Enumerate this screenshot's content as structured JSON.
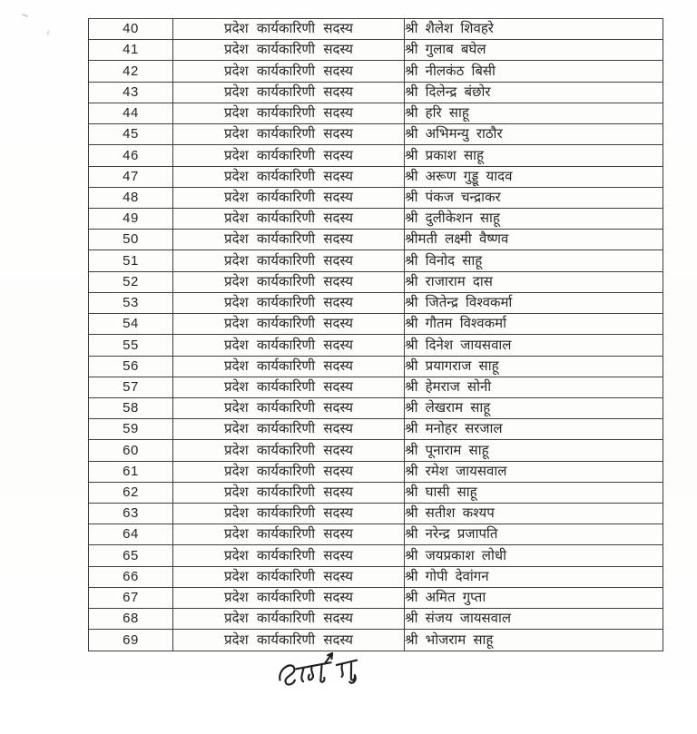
{
  "colors": {
    "ink": "#262626",
    "table_border": "#3e3e3e",
    "signature_ink": "#1f1f1f",
    "page_background": "#ffffff"
  },
  "table": {
    "columns": [
      "serial",
      "position",
      "name"
    ],
    "position_label": "प्रदेश कार्यकारिणी सदस्य",
    "rows": [
      {
        "serial": "40",
        "position": "प्रदेश कार्यकारिणी सदस्य",
        "name": "श्री शैलेश शिवहरे"
      },
      {
        "serial": "41",
        "position": "प्रदेश कार्यकारिणी सदस्य",
        "name": "श्री गुलाब बघेल"
      },
      {
        "serial": "42",
        "position": "प्रदेश कार्यकारिणी सदस्य",
        "name": "श्री नीलकंठ बिसी"
      },
      {
        "serial": "43",
        "position": "प्रदेश कार्यकारिणी सदस्य",
        "name": "श्री दिलेन्द्र बंछोर"
      },
      {
        "serial": "44",
        "position": "प्रदेश कार्यकारिणी सदस्य",
        "name": "श्री हरि साहू"
      },
      {
        "serial": "45",
        "position": "प्रदेश कार्यकारिणी सदस्य",
        "name": "श्री अभिमन्यु राठौर"
      },
      {
        "serial": "46",
        "position": "प्रदेश कार्यकारिणी सदस्य",
        "name": "श्री प्रकाश साहू"
      },
      {
        "serial": "47",
        "position": "प्रदेश कार्यकारिणी सदस्य",
        "name": "श्री अरूण गुड्डू यादव"
      },
      {
        "serial": "48",
        "position": "प्रदेश कार्यकारिणी सदस्य",
        "name": "श्री पंकज चन्द्राकर"
      },
      {
        "serial": "49",
        "position": "प्रदेश कार्यकारिणी सदस्य",
        "name": "श्री दुलीकेशन साहू"
      },
      {
        "serial": "50",
        "position": "प्रदेश कार्यकारिणी सदस्य",
        "name": "श्रीमती लक्ष्मी वैष्णव"
      },
      {
        "serial": "51",
        "position": "प्रदेश कार्यकारिणी सदस्य",
        "name": "श्री विनोद साहू"
      },
      {
        "serial": "52",
        "position": "प्रदेश कार्यकारिणी सदस्य",
        "name": "श्री राजाराम दास"
      },
      {
        "serial": "53",
        "position": "प्रदेश कार्यकारिणी सदस्य",
        "name": "श्री जितेन्द्र विश्वकर्मा"
      },
      {
        "serial": "54",
        "position": "प्रदेश कार्यकारिणी सदस्य",
        "name": "श्री गौतम विश्वकर्मा"
      },
      {
        "serial": "55",
        "position": "प्रदेश कार्यकारिणी सदस्य",
        "name": "श्री दिनेश जायसवाल"
      },
      {
        "serial": "56",
        "position": "प्रदेश कार्यकारिणी सदस्य",
        "name": "श्री प्रयागराज साहू"
      },
      {
        "serial": "57",
        "position": "प्रदेश कार्यकारिणी सदस्य",
        "name": "श्री हेमराज सोनी"
      },
      {
        "serial": "58",
        "position": "प्रदेश कार्यकारिणी सदस्य",
        "name": "श्री लेखराम साहू"
      },
      {
        "serial": "59",
        "position": "प्रदेश कार्यकारिणी सदस्य",
        "name": "श्री मनोहर सरजाल"
      },
      {
        "serial": "60",
        "position": "प्रदेश कार्यकारिणी सदस्य",
        "name": "श्री पूनाराम साहू"
      },
      {
        "serial": "61",
        "position": "प्रदेश कार्यकारिणी सदस्य",
        "name": "श्री रमेश जायसवाल"
      },
      {
        "serial": "62",
        "position": "प्रदेश कार्यकारिणी सदस्य",
        "name": "श्री घासी साहू"
      },
      {
        "serial": "63",
        "position": "प्रदेश कार्यकारिणी सदस्य",
        "name": "श्री सतीश कश्यप"
      },
      {
        "serial": "64",
        "position": "प्रदेश कार्यकारिणी सदस्य",
        "name": "श्री नरेन्द्र प्रजापति"
      },
      {
        "serial": "65",
        "position": "प्रदेश कार्यकारिणी सदस्य",
        "name": "श्री जयप्रकाश लोधी"
      },
      {
        "serial": "66",
        "position": "प्रदेश कार्यकारिणी सदस्य",
        "name": "श्री गोपी देवांगन"
      },
      {
        "serial": "67",
        "position": "प्रदेश कार्यकारिणी सदस्य",
        "name": "श्री अमित गुप्ता"
      },
      {
        "serial": "68",
        "position": "प्रदेश कार्यकारिणी सदस्य",
        "name": "श्री संजय जायसवाल"
      },
      {
        "serial": "69",
        "position": "प्रदेश कार्यकारिणी सदस्य",
        "name": "श्री भोजराम साहू"
      }
    ]
  },
  "signature": {
    "approx_text": "अशोक साहू"
  }
}
